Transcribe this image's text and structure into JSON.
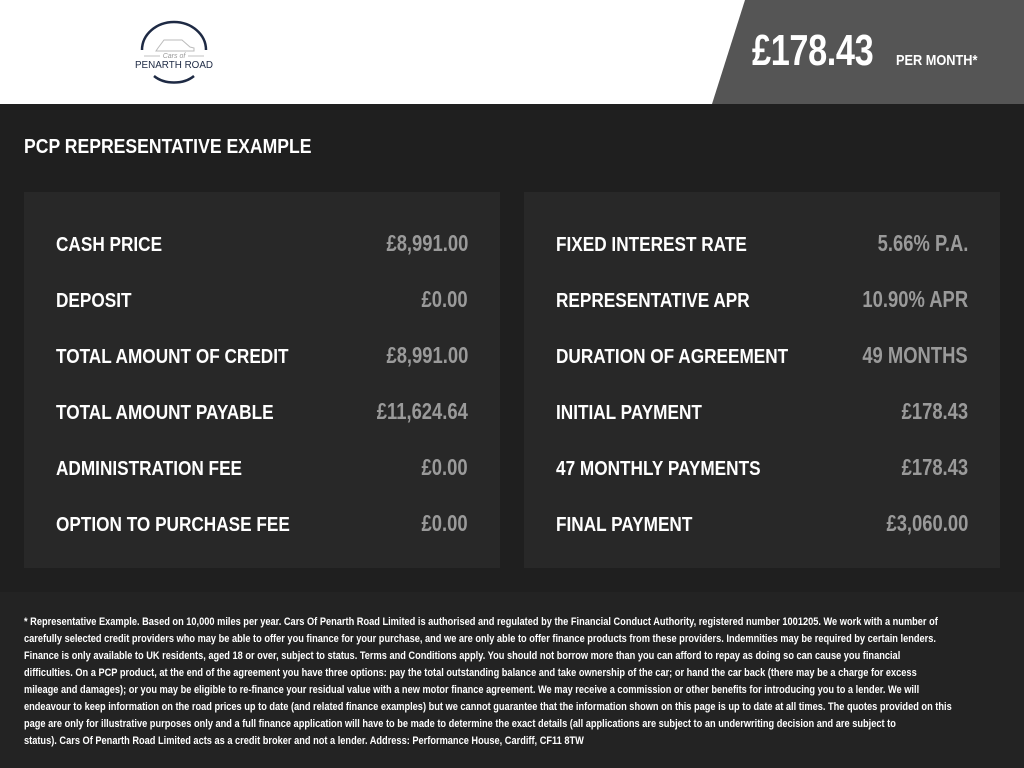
{
  "header": {
    "logo": {
      "top": "Cars of",
      "bottom": "PENARTH ROAD"
    },
    "monthly_price": "£178.43",
    "per_month": "PER MONTH*",
    "colors": {
      "header_bg": "#ffffff",
      "price_panel_bg": "#555555"
    }
  },
  "section_title": "PCP REPRESENTATIVE EXAMPLE",
  "left_panel": [
    {
      "label": "CASH PRICE",
      "value": "£8,991.00"
    },
    {
      "label": "DEPOSIT",
      "value": "£0.00"
    },
    {
      "label": "TOTAL AMOUNT OF CREDIT",
      "value": "£8,991.00"
    },
    {
      "label": "TOTAL AMOUNT PAYABLE",
      "value": "£11,624.64"
    },
    {
      "label": "ADMINISTRATION FEE",
      "value": "£0.00"
    },
    {
      "label": "OPTION TO PURCHASE FEE",
      "value": "£0.00"
    }
  ],
  "right_panel": [
    {
      "label": "FIXED INTEREST RATE",
      "value": "5.66% P.A."
    },
    {
      "label": "REPRESENTATIVE APR",
      "value": "10.90% APR"
    },
    {
      "label": "DURATION OF AGREEMENT",
      "value": "49 MONTHS"
    },
    {
      "label": "INITIAL PAYMENT",
      "value": "£178.43"
    },
    {
      "label": "47 MONTHLY PAYMENTS",
      "value": "£178.43"
    },
    {
      "label": "FINAL PAYMENT",
      "value": "£3,060.00"
    }
  ],
  "disclaimer_lines": [
    "* Representative Example. Based on 10,000 miles per year. Cars Of Penarth Road Limited is authorised and regulated by the Financial Conduct Authority, registered number 1001205. We work with a number of",
    "carefully selected credit providers who may be able to offer you finance for your purchase, and we are only able to offer finance products from these providers. Indemnities may be required by certain lenders.",
    "Finance is only available to UK residents, aged 18 or over, subject to status. Terms and Conditions apply. You should not borrow more than you can afford to repay as doing so can cause you financial",
    "difficulties. On a PCP product, at the end of the agreement you have three options: pay the total outstanding balance and take ownership of the car; or hand the car back (there may be a charge for excess",
    "mileage and damages); or you may be eligible to re-finance your residual value with a new motor finance agreement. We may receive a commission or other benefits for introducing you to a lender. We will",
    "endeavour to keep information on the road prices up to date (and related finance examples) but we cannot guarantee that the information shown on this page is up to date at all times. The quotes provided on this",
    "page are only for illustrative purposes only and a full finance application will have to be made to determine the exact details (all applications are subject to an underwriting decision and are subject to",
    "status). Cars Of Penarth Road Limited acts as a credit broker and not a lender. Address: Performance House, Cardiff, CF11 8TW"
  ]
}
